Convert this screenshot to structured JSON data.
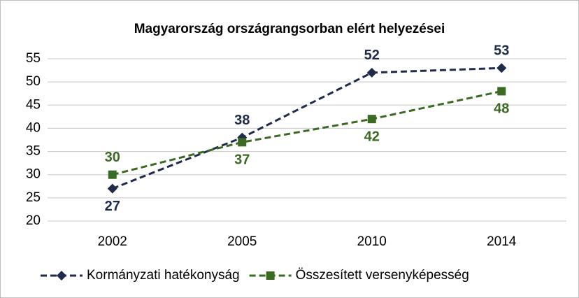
{
  "chart_data": {
    "type": "line",
    "title": "Magyarország országrangsorban elért helyezései",
    "categories": [
      "2002",
      "2005",
      "2010",
      "2014"
    ],
    "series": [
      {
        "name": "Kormányzati hatékonyság",
        "color": "#1f2b4a",
        "marker": "diamond",
        "values": [
          27,
          38,
          52,
          53
        ]
      },
      {
        "name": "Összesített versenyképesség",
        "color": "#3b6a22",
        "marker": "square",
        "values": [
          30,
          37,
          42,
          48
        ]
      }
    ],
    "ylim": [
      20,
      55
    ],
    "yticks": [
      20,
      25,
      30,
      35,
      40,
      45,
      50,
      55
    ],
    "grid": true,
    "legend": "bottom"
  }
}
